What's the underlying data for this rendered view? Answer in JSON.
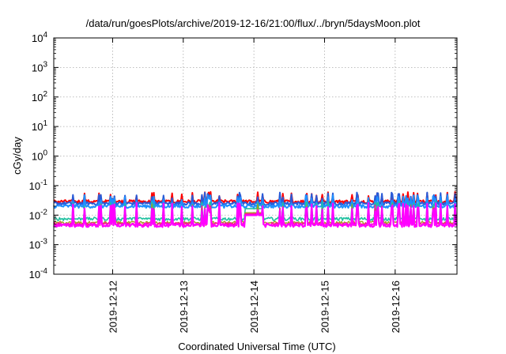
{
  "chart_data": {
    "type": "line",
    "title": "/data/run/goesPlots/archive/2019-12-16/21:00/flux/../bryn/5daysMoon.plot",
    "xlabel": "Coordinated Universal Time (UTC)",
    "ylabel": "cGy/day",
    "yscale": "log",
    "ylim": [
      0.0001,
      10000
    ],
    "xlim": [
      "2019-12-11T04:00",
      "2019-12-16T21:00"
    ],
    "grid": true,
    "x_ticks": [
      "2019-12-12",
      "2019-12-13",
      "2019-12-14",
      "2019-12-15",
      "2019-12-16"
    ],
    "y_ticks": [
      {
        "value": 0.0001,
        "base": "10",
        "exp": "-4"
      },
      {
        "value": 0.001,
        "base": "10",
        "exp": "-3"
      },
      {
        "value": 0.01,
        "base": "10",
        "exp": "-2"
      },
      {
        "value": 0.1,
        "base": "10",
        "exp": "-1"
      },
      {
        "value": 1,
        "base": "10",
        "exp": "0"
      },
      {
        "value": 10,
        "base": "10",
        "exp": "1"
      },
      {
        "value": 100,
        "base": "10",
        "exp": "2"
      },
      {
        "value": 1000,
        "base": "10",
        "exp": "3"
      },
      {
        "value": 10000,
        "base": "10",
        "exp": "4"
      }
    ],
    "series": [
      {
        "color": "#ff0000",
        "baseline": 0.029,
        "spike": 0.052,
        "width": 2.0
      },
      {
        "color": "#2a5bd7",
        "baseline": 0.025,
        "spike": 0.05,
        "width": 2.0
      },
      {
        "color": "#1e90ff",
        "baseline": 0.02,
        "spike": 0.04,
        "width": 2.0
      },
      {
        "color": "#20c0a0",
        "baseline": 0.0075,
        "spike": 0.025,
        "width": 1.6
      },
      {
        "color": "#a0a020",
        "baseline": 0.0055,
        "spike": 0.02,
        "width": 1.4
      },
      {
        "color": "#ff1493",
        "baseline": 0.005,
        "spike": 0.018,
        "width": 1.6
      },
      {
        "color": "#ff00ff",
        "baseline": 0.0045,
        "spike": 0.022,
        "width": 2.2
      }
    ]
  }
}
